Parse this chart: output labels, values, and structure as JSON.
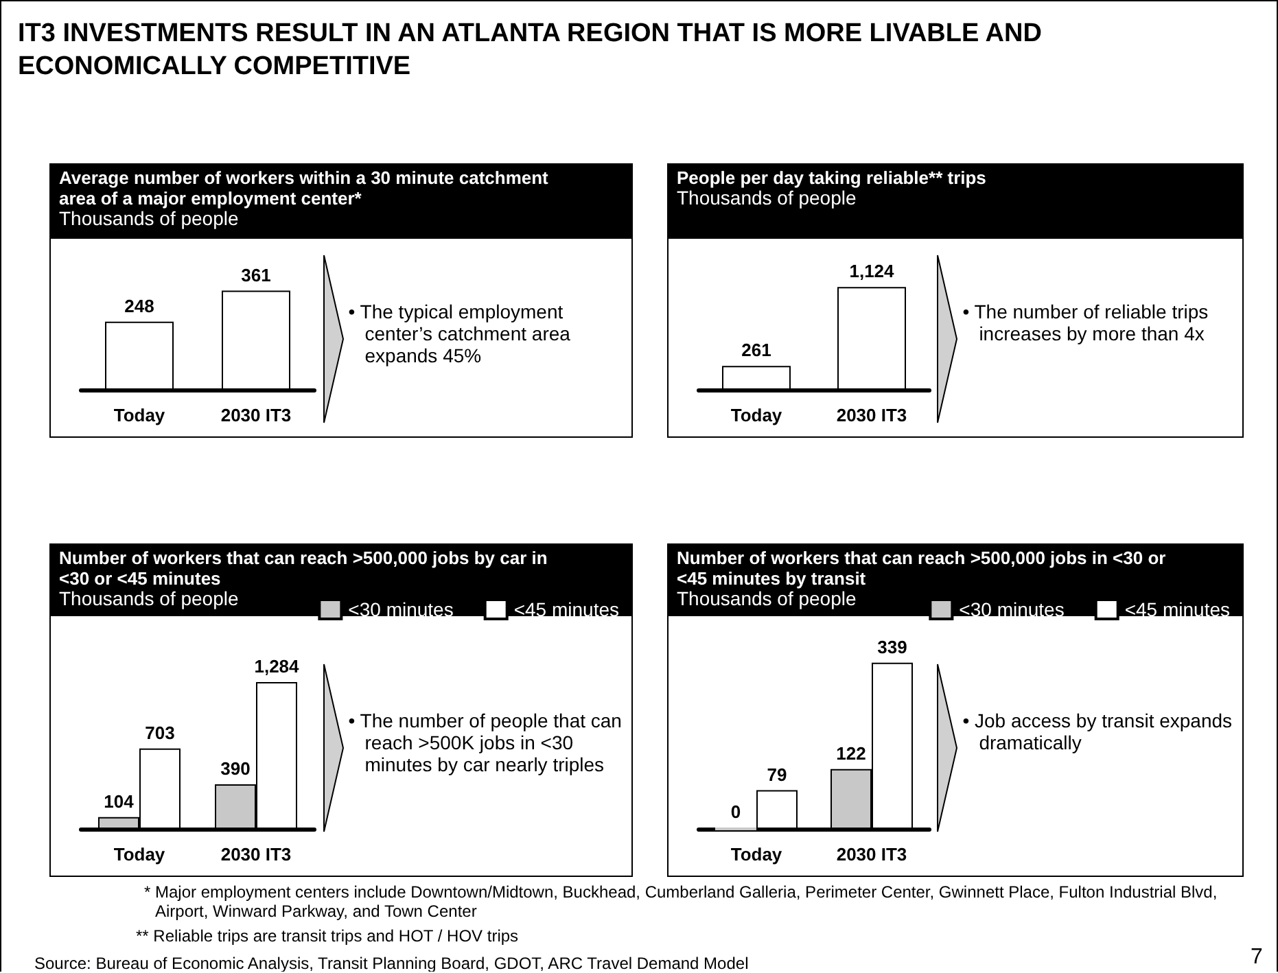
{
  "chart_data": [
    {
      "type": "bar",
      "title": "Average number of workers within a 30 minute catchment area of a major employment center*",
      "subtitle": "Thousands of people",
      "categories": [
        "Today",
        "2030 IT3"
      ],
      "values": [
        248,
        361
      ],
      "value_labels": [
        "248",
        "361"
      ],
      "color": "#ffffff",
      "grid": false,
      "legend": false,
      "annotations": [
        "• The typical employment center’s catchment area expands  45%"
      ]
    },
    {
      "type": "bar",
      "title": "People per day taking reliable** trips",
      "subtitle": "Thousands of people",
      "categories": [
        "Today",
        "2030 IT3"
      ],
      "values": [
        261,
        1124
      ],
      "value_labels": [
        "261",
        "1,124"
      ],
      "color": "#ffffff",
      "grid": false,
      "legend": false,
      "annotations": [
        "• The number of reliable trips increases by more than 4x"
      ]
    },
    {
      "type": "bar",
      "title": "Number of workers that can reach >500,000 jobs by car in <30 or <45 minutes",
      "subtitle": "Thousands of people",
      "categories": [
        "Today",
        "2030 IT3"
      ],
      "series": [
        {
          "name": "<30 minutes",
          "color": "#c8c8c8",
          "values": [
            104,
            390
          ],
          "value_labels": [
            "104",
            "390"
          ]
        },
        {
          "name": "<45 minutes",
          "color": "#ffffff",
          "values": [
            703,
            1284
          ],
          "value_labels": [
            "703",
            "1,284"
          ]
        }
      ],
      "grid": false,
      "legend": "top right",
      "annotations": [
        "• The number of people that can reach >500K jobs in <30 minutes by car nearly triples"
      ]
    },
    {
      "type": "bar",
      "title": "Number of workers that can reach >500,000 jobs in <30 or <45 minutes by transit",
      "subtitle": "Thousands of people",
      "categories": [
        "Today",
        "2030 IT3"
      ],
      "series": [
        {
          "name": "<30 minutes",
          "color": "#c8c8c8",
          "values": [
            0,
            122
          ],
          "value_labels": [
            "0",
            "122"
          ]
        },
        {
          "name": "<45 minutes",
          "color": "#ffffff",
          "values": [
            79,
            339
          ],
          "value_labels": [
            "79",
            "339"
          ]
        }
      ],
      "grid": false,
      "legend": "top right",
      "annotations": [
        "• Job access by transit expands dramatically"
      ]
    },
    {
      "type": "other",
      "title": "IT3 INVESTMENTS RESULT IN AN ATLANTA REGION THAT IS MORE LIVABLE AND ECONOMICALLY COMPETITIVE",
      "annotations": [
        "* Major employment centers include Downtown/Midtown, Buckhead, Cumberland Galleria, Perimeter Center, Gwinnett Place, Fulton Industrial Blvd, Airport, Winward Parkway, and Town Center",
        "** Reliable trips are transit trips and HOT / HOV trips",
        "Source: Bureau of Economic Analysis, Transit Planning Board, GDOT, ARC Travel Demand Model",
        "7"
      ]
    }
  ]
}
